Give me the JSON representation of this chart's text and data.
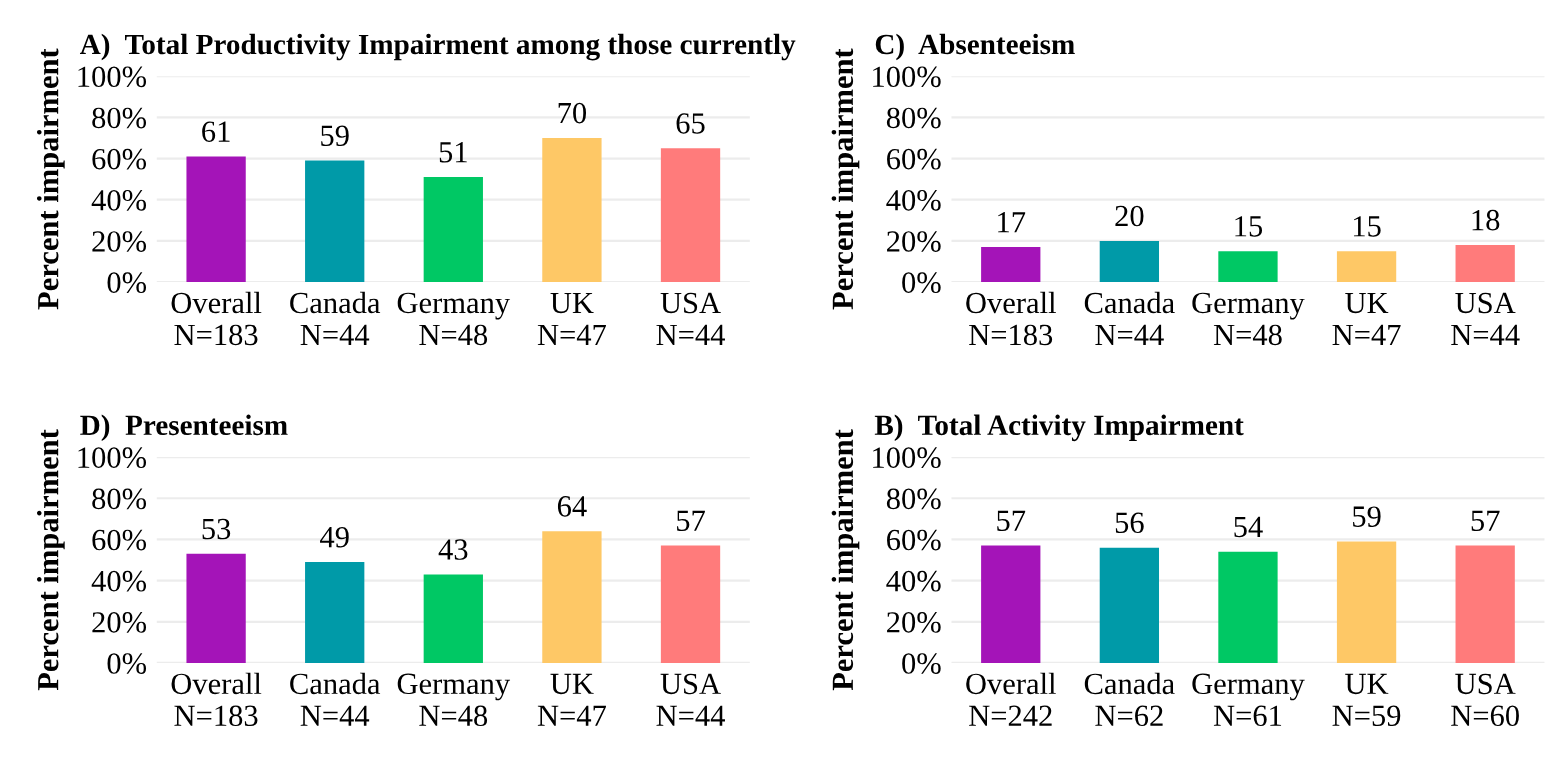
{
  "chart_data": [
    {
      "type": "bar",
      "title": "A)  Total Productivity Impairment among those currently",
      "ylabel": "Percent impairment",
      "categories": [
        "Overall\nN=183",
        "Canada\nN=44",
        "Germany\nN=48",
        "UK\nN=47",
        "USA\nN=44"
      ],
      "values": [
        61,
        59,
        51,
        70,
        65
      ],
      "colors": [
        "#a414b8",
        "#009aa8",
        "#00c864",
        "#fec866",
        "#ff7b7b"
      ],
      "ylim": [
        0,
        100
      ],
      "yticks": [
        {
          "value": 0,
          "label": "0%"
        },
        {
          "value": 20,
          "label": "20%"
        },
        {
          "value": 40,
          "label": "40%"
        },
        {
          "value": 60,
          "label": "60%"
        },
        {
          "value": 80,
          "label": "80%"
        },
        {
          "value": 100,
          "label": "100%"
        }
      ],
      "grid": "y",
      "data_labels": true
    },
    {
      "type": "bar",
      "title": "C)  Absenteeism",
      "ylabel": "Percent impairment",
      "categories": [
        "Overall\nN=183",
        "Canada\nN=44",
        "Germany\nN=48",
        "UK\nN=47",
        "USA\nN=44"
      ],
      "values": [
        17,
        20,
        15,
        15,
        18
      ],
      "colors": [
        "#a414b8",
        "#009aa8",
        "#00c864",
        "#fec866",
        "#ff7b7b"
      ],
      "ylim": [
        0,
        100
      ],
      "yticks": [
        {
          "value": 0,
          "label": "0%"
        },
        {
          "value": 20,
          "label": "20%"
        },
        {
          "value": 40,
          "label": "40%"
        },
        {
          "value": 60,
          "label": "60%"
        },
        {
          "value": 80,
          "label": "80%"
        },
        {
          "value": 100,
          "label": "100%"
        }
      ],
      "grid": "y",
      "data_labels": true
    },
    {
      "type": "bar",
      "title": "D)  Presenteeism",
      "ylabel": "Percent impairment",
      "categories": [
        "Overall\nN=183",
        "Canada\nN=44",
        "Germany\nN=48",
        "UK\nN=47",
        "USA\nN=44"
      ],
      "values": [
        53,
        49,
        43,
        64,
        57
      ],
      "colors": [
        "#a414b8",
        "#009aa8",
        "#00c864",
        "#fec866",
        "#ff7b7b"
      ],
      "ylim": [
        0,
        100
      ],
      "yticks": [
        {
          "value": 0,
          "label": "0%"
        },
        {
          "value": 20,
          "label": "20%"
        },
        {
          "value": 40,
          "label": "40%"
        },
        {
          "value": 60,
          "label": "60%"
        },
        {
          "value": 80,
          "label": "80%"
        },
        {
          "value": 100,
          "label": "100%"
        }
      ],
      "grid": "y",
      "data_labels": true
    },
    {
      "type": "bar",
      "title": "B)  Total Activity Impairment",
      "ylabel": "Percent impairment",
      "categories": [
        "Overall\nN=242",
        "Canada\nN=62",
        "Germany\nN=61",
        "UK\nN=59",
        "USA\nN=60"
      ],
      "values": [
        57,
        56,
        54,
        59,
        57
      ],
      "colors": [
        "#a414b8",
        "#009aa8",
        "#00c864",
        "#fec866",
        "#ff7b7b"
      ],
      "ylim": [
        0,
        100
      ],
      "yticks": [
        {
          "value": 0,
          "label": "0%"
        },
        {
          "value": 20,
          "label": "20%"
        },
        {
          "value": 40,
          "label": "40%"
        },
        {
          "value": 60,
          "label": "60%"
        },
        {
          "value": 80,
          "label": "80%"
        },
        {
          "value": 100,
          "label": "100%"
        }
      ],
      "grid": "y",
      "data_labels": true
    }
  ]
}
